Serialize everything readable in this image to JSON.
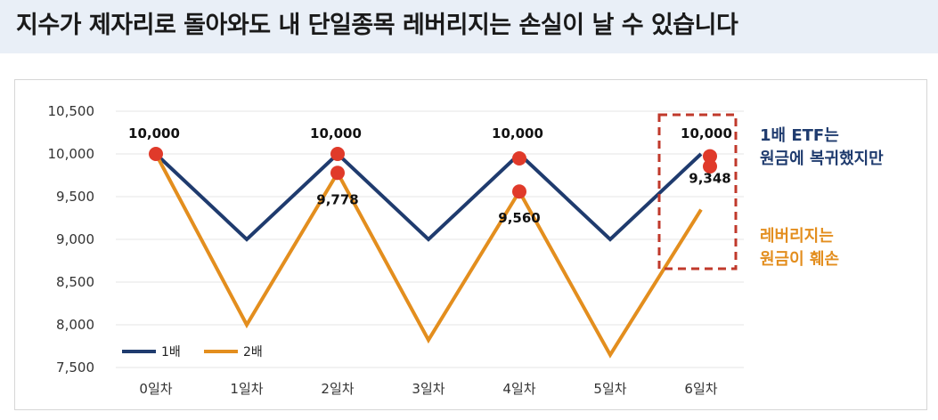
{
  "header": {
    "title": "지수가 제자리로 돌아와도 내 단일종목 레버리지는 손실이 날 수 있습니다"
  },
  "annotations": {
    "etf_line1": "1배 ETF는",
    "etf_line2": "원금에 복귀했지만",
    "lev_line1": "레버리지는",
    "lev_line2": "원금이 훼손"
  },
  "colors": {
    "series_1x": "#1f3b6e",
    "series_2x": "#e38e1e",
    "marker": "#e03a2a",
    "highlight_box": "#c0392b",
    "header_bg": "#e9eff7",
    "gridline": "#e4e4e4"
  },
  "chart_data": {
    "type": "line",
    "categories": [
      "0일차",
      "1일차",
      "2일차",
      "3일차",
      "4일차",
      "5일차",
      "6일차"
    ],
    "ylim": [
      7500,
      10500
    ],
    "yticks": [
      7500,
      8000,
      8500,
      9000,
      9500,
      10000,
      10500
    ],
    "ytick_labels": [
      "7,500",
      "8,000",
      "8,500",
      "9,000",
      "9,500",
      "10,000",
      "10,500"
    ],
    "legend_position": "bottom-left",
    "series": [
      {
        "name": "1배",
        "color": "#1f3b6e",
        "values": [
          10000,
          9000,
          10000,
          9000,
          10000,
          9000,
          10000
        ]
      },
      {
        "name": "2배",
        "color": "#e38e1e",
        "values": [
          10000,
          8000,
          9778,
          7822,
          9560,
          7648,
          9348
        ]
      }
    ],
    "markers_1x": [
      {
        "index": 0,
        "value": 10000,
        "label": "10,000"
      },
      {
        "index": 2,
        "value": 10000,
        "label": "10,000"
      },
      {
        "index": 4,
        "value": 10000,
        "label": "10,000"
      },
      {
        "index": 6,
        "value": 10000,
        "label": "10,000"
      }
    ],
    "markers_2x": [
      {
        "index": 2,
        "value": 9778,
        "label": "9,778"
      },
      {
        "index": 4,
        "value": 9560,
        "label": "9,560"
      },
      {
        "index": 6,
        "value": 9348,
        "label": "9,348"
      }
    ]
  }
}
